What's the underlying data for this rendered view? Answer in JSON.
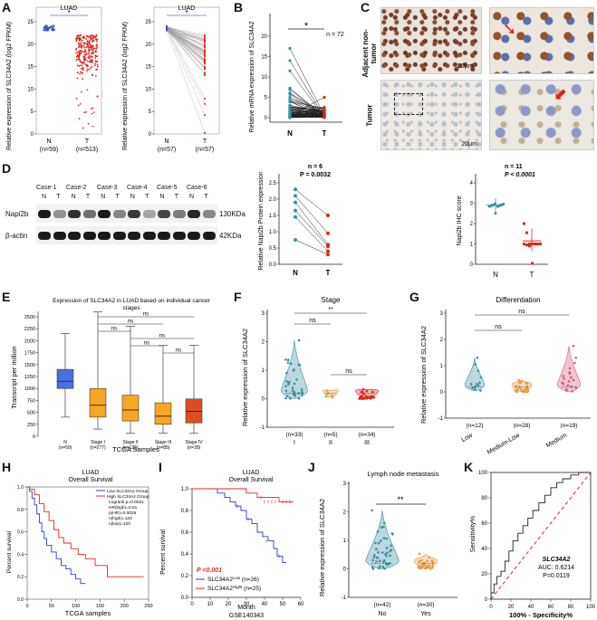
{
  "panels": [
    "A",
    "B",
    "C",
    "D",
    "E",
    "F",
    "G",
    "H",
    "I",
    "J",
    "K"
  ],
  "A": {
    "title": "LUAD",
    "ylabel": "Relative expression of SLC34A2 (log2 FPKM)",
    "sig": "*",
    "left_groups": [
      {
        "name": "N",
        "n": "(n=59)"
      },
      {
        "name": "T",
        "n": "(n=513)"
      }
    ],
    "right_groups": [
      {
        "name": "N",
        "n": "(n=57)"
      },
      {
        "name": "T",
        "n": "(n=57)"
      }
    ],
    "yticks": [
      "0",
      "5",
      "10",
      "15",
      "20",
      "25"
    ]
  },
  "B": {
    "ylabel": "Relative mRNA expression of SLC34A2",
    "sig": "*",
    "n": "n = 72",
    "groups": [
      "N",
      "T"
    ],
    "yticks": [
      "0",
      "5",
      "10",
      "15",
      "20"
    ]
  },
  "C": {
    "row1": "Adjacent non-tumor",
    "row2": "Tumor",
    "scale": "20μm"
  },
  "D": {
    "cases": [
      "Case-1",
      "Case-2",
      "Case-3",
      "Case-4",
      "Case-5",
      "Case-6"
    ],
    "nt": [
      "N",
      "T"
    ],
    "proteins": [
      "Napi2b",
      "β-actin"
    ],
    "kda": [
      "130KDa",
      "42KDa"
    ],
    "mid_ylabel": "Relative Napi2b Protein expression",
    "mid_n": "n = 6",
    "mid_p": "P = 0.0032",
    "mid_groups": [
      "N",
      "T"
    ],
    "mid_yticks": [
      "0.0",
      "0.5",
      "1.0",
      "1.5",
      "2.0",
      "2.5"
    ],
    "ihc_ylabel": "Napi2b IHC score",
    "ihc_n": "n = 11",
    "ihc_p": "P < 0.0001",
    "ihc_groups": [
      "N",
      "T"
    ],
    "ihc_yticks": [
      "0",
      "1",
      "2",
      "3",
      "4"
    ]
  },
  "E": {
    "title": "Expression of SLC34A2 in LUAD based on individual cancer stages",
    "ylabel": "Transcript per million",
    "xlabel": "TCGA Samples",
    "groups": [
      "N (n=59)",
      "Stage I (n=277)",
      "Stage II (n=125)",
      "Stage III (n=85)",
      "Stage IV (n=28)"
    ],
    "ns": "ns",
    "yticks": [
      "0",
      "250",
      "500",
      "750",
      "1000",
      "1250",
      "1500",
      "1750",
      "2000",
      "2250",
      "2500"
    ]
  },
  "F": {
    "title": "Stage",
    "ylabel": "Relative expression of SLC34A2",
    "groups": [
      "I",
      "II",
      "III"
    ],
    "ns_labels": [
      "(n=33)",
      "(n=5)",
      "(n=34)"
    ],
    "sig_top": "**",
    "ns": "ns",
    "yticks": [
      "-1",
      "0",
      "1",
      "2",
      "3"
    ]
  },
  "G": {
    "title": "Differentiation",
    "ylabel": "Relative expression of SLC34A2",
    "groups": [
      "Low",
      "Medium-Low",
      "Medium"
    ],
    "ns_labels": [
      "(n=12)",
      "(n=28)",
      "(n=19)"
    ],
    "ns": "ns",
    "yticks": [
      "-1",
      "0",
      "1",
      "2",
      "3"
    ]
  },
  "H": {
    "title": "LUAD",
    "subtitle": "Overall Survival",
    "legend_low": "Low SLC34A2 Group",
    "legend_high": "High SLC34A2 Group",
    "stats": [
      "Logrank p=0.0021",
      "HR(high)=0.51",
      "p(HR)=0.0026",
      "n(high)=120",
      "n(low)=120"
    ],
    "ylabel": "Percent survival",
    "xlabel": "TCGA samples",
    "xticks": [
      "0",
      "50",
      "100",
      "150",
      "200",
      "250"
    ],
    "yticks": [
      "0.0",
      "0.2",
      "0.4",
      "0.6",
      "0.8",
      "1.0"
    ]
  },
  "I": {
    "title": "LUAD",
    "subtitle": "Overall Survival",
    "p": "P <0.001",
    "legend_low": "SLC34A2",
    "legend_low_sup": "Low",
    "legend_low_n": " (n=26)",
    "legend_high": "SLC34A2",
    "legend_high_sup": "Hight",
    "legend_high_n": " (n=25)",
    "ylabel": "Percent survival",
    "xlabel": "Month",
    "xlabel2": "GSE140343",
    "xticks": [
      "0",
      "10",
      "20",
      "30",
      "40",
      "50",
      "60"
    ],
    "yticks": [
      "0.0",
      "0.2",
      "0.4",
      "0.6",
      "0.8",
      "1.0"
    ]
  },
  "J": {
    "title": "Lymph node metastasis",
    "ylabel": "Relative expression of SLC34A2",
    "sig": "**",
    "groups": [
      "No",
      "Yes"
    ],
    "ns_labels": [
      "(n=42)",
      "(n=30)"
    ],
    "yticks": [
      "-1",
      "0",
      "1",
      "2",
      "3"
    ]
  },
  "K": {
    "gene": "SLC34A2",
    "auc": "AUC: 0.6214",
    "p": "P=0.0119",
    "ylabel": "Sensitivity%",
    "xlabel": "100% - Specificity%",
    "ticks": [
      "0",
      "20",
      "40",
      "60",
      "80",
      "100"
    ]
  },
  "colors": {
    "blue": "#3a4fc4",
    "red": "#e0261e",
    "teal": "#3c8ea0",
    "orange": "#e89a3a",
    "pink": "#d65a7a"
  }
}
